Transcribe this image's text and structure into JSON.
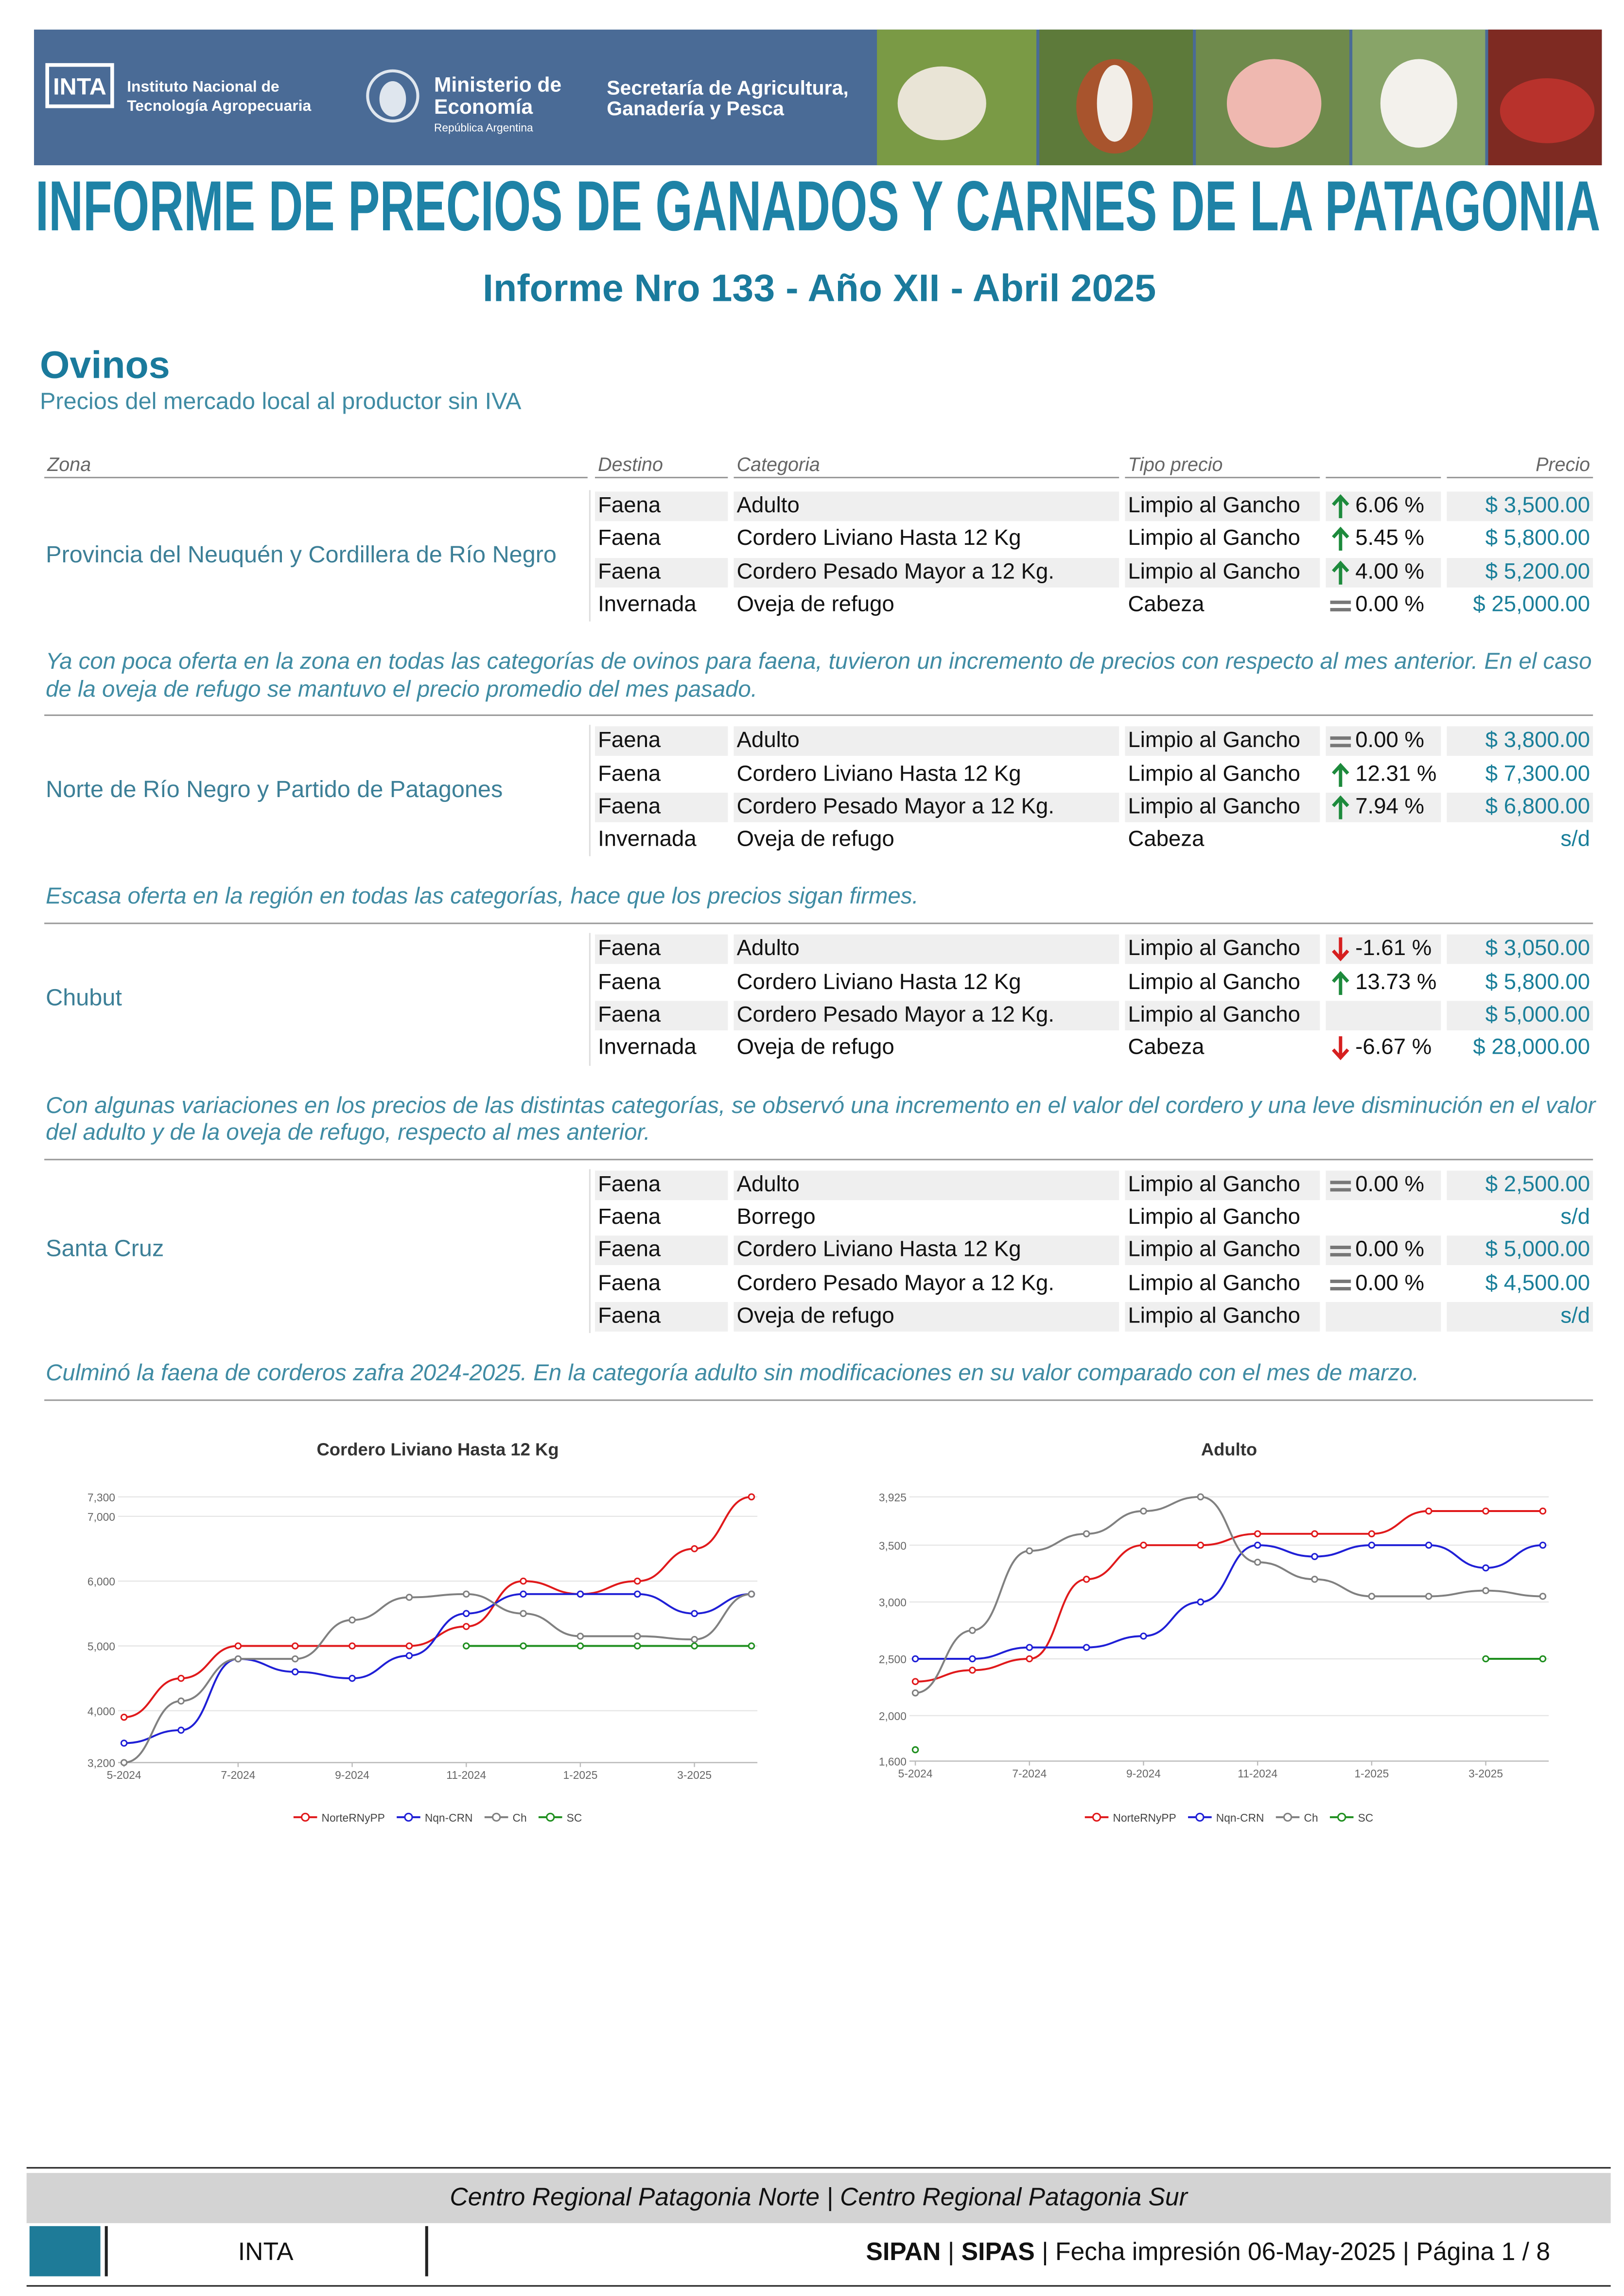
{
  "header": {
    "inta_logo": "INTA",
    "inta_name": [
      "Instituto Nacional de",
      "Tecnología Agropecuaria"
    ],
    "ministerio": [
      "Ministerio de",
      "Economía"
    ],
    "republica": "República Argentina",
    "secretaria": [
      "Secretaría de Agricultura,",
      "Ganadería y Pesca"
    ],
    "banner_title": "INFORME DE PRECIOS DE GANADOS Y CARNES DE LA PATAGONIA"
  },
  "report_title": "Informe Nro 133 - Año XII - Abril 2025",
  "section": {
    "title": "Ovinos",
    "subtitle": "Precios del mercado local al productor sin IVA"
  },
  "table": {
    "columns": [
      "Zona",
      "Destino",
      "Categoria",
      "Tipo precio",
      "Precio"
    ],
    "zones": [
      {
        "zona": "Provincia del Neuquén y Cordillera de Río Negro",
        "rows": [
          {
            "destino": "Faena",
            "categoria": "Adulto",
            "tipo_precio": "Limpio al Gancho",
            "trend": "up",
            "variacion": "6.06 %",
            "precio": "$ 3,500.00"
          },
          {
            "destino": "Faena",
            "categoria": "Cordero Liviano Hasta 12 Kg",
            "tipo_precio": "Limpio al Gancho",
            "trend": "up",
            "variacion": "5.45 %",
            "precio": "$ 5,800.00"
          },
          {
            "destino": "Faena",
            "categoria": "Cordero Pesado Mayor a 12 Kg.",
            "tipo_precio": "Limpio al Gancho",
            "trend": "up",
            "variacion": "4.00 %",
            "precio": "$ 5,200.00"
          },
          {
            "destino": "Invernada",
            "categoria": "Oveja de refugo",
            "tipo_precio": "Cabeza",
            "trend": "flat",
            "variacion": "0.00 %",
            "precio": "$ 25,000.00"
          }
        ],
        "note": "Ya con poca oferta en la zona en todas las categorías de ovinos para faena, tuvieron un incremento de precios con respecto al mes anterior. En el caso de la oveja de refugo se mantuvo el precio promedio del mes pasado."
      },
      {
        "zona": "Norte de Río Negro y Partido de Patagones",
        "rows": [
          {
            "destino": "Faena",
            "categoria": "Adulto",
            "tipo_precio": "Limpio al Gancho",
            "trend": "flat",
            "variacion": "0.00 %",
            "precio": "$ 3,800.00"
          },
          {
            "destino": "Faena",
            "categoria": "Cordero Liviano Hasta 12 Kg",
            "tipo_precio": "Limpio al Gancho",
            "trend": "up",
            "variacion": "12.31 %",
            "precio": "$ 7,300.00"
          },
          {
            "destino": "Faena",
            "categoria": "Cordero Pesado Mayor a 12 Kg.",
            "tipo_precio": "Limpio al Gancho",
            "trend": "up",
            "variacion": "7.94 %",
            "precio": "$ 6,800.00"
          },
          {
            "destino": "Invernada",
            "categoria": "Oveja de refugo",
            "tipo_precio": "Cabeza",
            "trend": null,
            "variacion": null,
            "precio": "s/d"
          }
        ],
        "note": "Escasa oferta en la región en todas las categorías, hace que los precios sigan firmes."
      },
      {
        "zona": "Chubut",
        "rows": [
          {
            "destino": "Faena",
            "categoria": "Adulto",
            "tipo_precio": "Limpio al Gancho",
            "trend": "down",
            "variacion": "-1.61 %",
            "precio": "$ 3,050.00"
          },
          {
            "destino": "Faena",
            "categoria": "Cordero Liviano Hasta 12 Kg",
            "tipo_precio": "Limpio al Gancho",
            "trend": "up",
            "variacion": "13.73 %",
            "precio": "$ 5,800.00"
          },
          {
            "destino": "Faena",
            "categoria": "Cordero Pesado Mayor a 12 Kg.",
            "tipo_precio": "Limpio al Gancho",
            "trend": null,
            "variacion": null,
            "precio": "$ 5,000.00"
          },
          {
            "destino": "Invernada",
            "categoria": "Oveja de refugo",
            "tipo_precio": "Cabeza",
            "trend": "down",
            "variacion": "-6.67 %",
            "precio": "$ 28,000.00"
          }
        ],
        "note": "Con algunas variaciones en los precios de las distintas categorías, se observó una incremento en el valor del cordero y una leve disminución en el valor del adulto y de la oveja de refugo, respecto al mes anterior."
      },
      {
        "zona": "Santa Cruz",
        "rows": [
          {
            "destino": "Faena",
            "categoria": "Adulto",
            "tipo_precio": "Limpio al Gancho",
            "trend": "flat",
            "variacion": "0.00 %",
            "precio": "$ 2,500.00"
          },
          {
            "destino": "Faena",
            "categoria": "Borrego",
            "tipo_precio": "Limpio al Gancho",
            "trend": null,
            "variacion": null,
            "precio": "s/d"
          },
          {
            "destino": "Faena",
            "categoria": "Cordero Liviano Hasta 12 Kg",
            "tipo_precio": "Limpio al Gancho",
            "trend": "flat",
            "variacion": "0.00 %",
            "precio": "$ 5,000.00"
          },
          {
            "destino": "Faena",
            "categoria": "Cordero Pesado Mayor a 12 Kg.",
            "tipo_precio": "Limpio al Gancho",
            "trend": "flat",
            "variacion": "0.00 %",
            "precio": "$ 4,500.00"
          },
          {
            "destino": "Faena",
            "categoria": "Oveja de refugo",
            "tipo_precio": "Limpio al Gancho",
            "trend": null,
            "variacion": null,
            "precio": "s/d"
          }
        ],
        "note": "Culminó la faena de corderos zafra 2024-2025. En la categoría adulto sin modificaciones en su valor comparado con el mes de marzo."
      }
    ]
  },
  "chart_data": [
    {
      "type": "line",
      "title": "Cordero Liviano Hasta 12 Kg",
      "categories": [
        "5-2024",
        null,
        "7-2024",
        null,
        "9-2024",
        null,
        "11-2024",
        null,
        "1-2025",
        null,
        "3-2025",
        null
      ],
      "ylim": [
        3200,
        7300
      ],
      "yticks": [
        {
          "value": 3200,
          "label": "3,200"
        },
        {
          "value": 4000,
          "label": "4,000"
        },
        {
          "value": 5000,
          "label": "5,000"
        },
        {
          "value": 6000,
          "label": "6,000"
        },
        {
          "value": 7000,
          "label": "7,000"
        },
        {
          "value": 7300,
          "label": "7,300"
        }
      ],
      "grid": true,
      "series": [
        {
          "name": "NorteRNyPP",
          "color": "#e0191b",
          "values": [
            3900,
            4500,
            5000,
            5000,
            5000,
            5000,
            5300,
            6000,
            5800,
            6000,
            6500,
            7300
          ]
        },
        {
          "name": "Nqn-CRN",
          "color": "#1f1fd6",
          "values": [
            3500,
            3700,
            4800,
            4600,
            4500,
            4850,
            5500,
            5800,
            5800,
            5800,
            5500,
            5800
          ]
        },
        {
          "name": "Ch",
          "color": "#808080",
          "values": [
            3200,
            4150,
            4800,
            4800,
            5400,
            5750,
            5800,
            5500,
            5150,
            5150,
            5100,
            5800
          ]
        },
        {
          "name": "SC",
          "color": "#1f8f1f",
          "values": [
            null,
            null,
            null,
            null,
            null,
            null,
            5000,
            5000,
            5000,
            5000,
            5000,
            5000
          ]
        }
      ]
    },
    {
      "type": "line",
      "title": "Adulto",
      "categories": [
        "5-2024",
        null,
        "7-2024",
        null,
        "9-2024",
        null,
        "11-2024",
        null,
        "1-2025",
        null,
        "3-2025",
        null
      ],
      "ylim": [
        1600,
        3925
      ],
      "yticks": [
        {
          "value": 1600,
          "label": "1,600"
        },
        {
          "value": 2000,
          "label": "2,000"
        },
        {
          "value": 2500,
          "label": "2,500"
        },
        {
          "value": 3000,
          "label": "3,000"
        },
        {
          "value": 3500,
          "label": "3,500"
        },
        {
          "value": 3925,
          "label": "3,925"
        }
      ],
      "grid": true,
      "series": [
        {
          "name": "NorteRNyPP",
          "color": "#e0191b",
          "values": [
            2300,
            2400,
            2500,
            3200,
            3500,
            3500,
            3600,
            3600,
            3600,
            3800,
            3800,
            3800
          ]
        },
        {
          "name": "Nqn-CRN",
          "color": "#1f1fd6",
          "values": [
            2500,
            2500,
            2600,
            2600,
            2700,
            3000,
            3500,
            3400,
            3500,
            3500,
            3300,
            3500
          ]
        },
        {
          "name": "Ch",
          "color": "#808080",
          "values": [
            2200,
            2750,
            3450,
            3600,
            3800,
            3925,
            3350,
            3200,
            3050,
            3050,
            3100,
            3050
          ]
        },
        {
          "name": "SC",
          "color": "#1f8f1f",
          "values": [
            1700,
            null,
            null,
            null,
            null,
            null,
            null,
            null,
            null,
            null,
            2500,
            2500
          ]
        }
      ]
    }
  ],
  "footer": {
    "centros": "Centro Regional Patagonia Norte | Centro Regional Patagonia Sur",
    "inta": "INTA",
    "sipan": "SIPAN",
    "sipas": "SIPAS",
    "separator": "|",
    "fecha": "Fecha impresión 06-May-2025",
    "pagina": "Página 1 / 8"
  }
}
